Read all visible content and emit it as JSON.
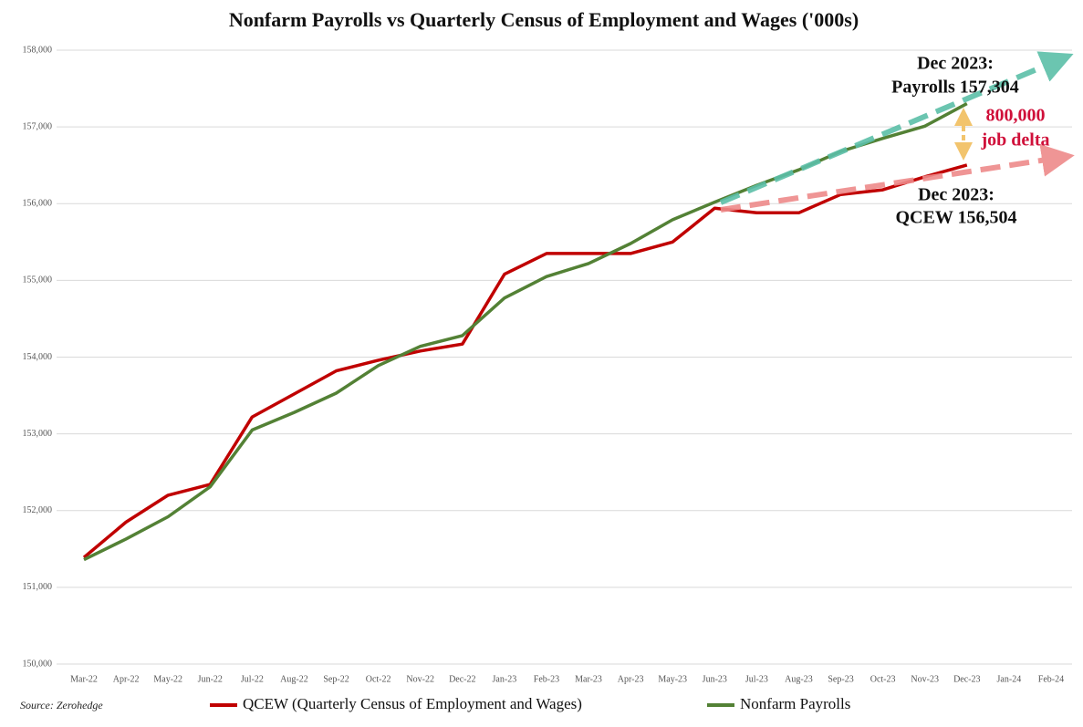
{
  "chart_data": {
    "type": "line",
    "title": "Nonfarm Payrolls vs Quarterly Census of Employment and Wages ('000s)",
    "categories": [
      "Mar-22",
      "Apr-22",
      "May-22",
      "Jun-22",
      "Jul-22",
      "Aug-22",
      "Sep-22",
      "Oct-22",
      "Nov-22",
      "Dec-22",
      "Jan-23",
      "Feb-23",
      "Mar-23",
      "Apr-23",
      "May-23",
      "Jun-23",
      "Jul-23",
      "Aug-23",
      "Sep-23",
      "Oct-23",
      "Nov-23",
      "Dec-23",
      "Jan-24",
      "Feb-24"
    ],
    "series": [
      {
        "name": "QCEW (Quarterly Census of Employment and Wages)",
        "color": "#c00000",
        "values": [
          151390,
          151850,
          152200,
          152340,
          153220,
          153520,
          153820,
          153960,
          154080,
          154170,
          155080,
          155350,
          155350,
          155350,
          155500,
          155940,
          155880,
          155880,
          156120,
          156180,
          156350,
          156504,
          null,
          null
        ]
      },
      {
        "name": "Nonfarm Payrolls",
        "color": "#538135",
        "values": [
          151360,
          151630,
          151920,
          152310,
          153050,
          153280,
          153530,
          153890,
          154140,
          154280,
          154770,
          155050,
          155220,
          155480,
          155790,
          156020,
          156240,
          156440,
          156680,
          156850,
          157010,
          157304,
          null,
          null
        ]
      }
    ],
    "ylim": [
      150000,
      158000
    ],
    "yticks": [
      {
        "value": 150000,
        "label": "150,000"
      },
      {
        "value": 151000,
        "label": "151,000"
      },
      {
        "value": 152000,
        "label": "152,000"
      },
      {
        "value": 153000,
        "label": "153,000"
      },
      {
        "value": 154000,
        "label": "154,000"
      },
      {
        "value": 155000,
        "label": "155,000"
      },
      {
        "value": 156000,
        "label": "156,000"
      },
      {
        "value": 157000,
        "label": "157,000"
      },
      {
        "value": 158000,
        "label": "158,000"
      }
    ],
    "grid": true,
    "legend": "bottom",
    "annotations": [
      "Dec 2023:",
      "Payrolls 157,304",
      "800,000",
      "job delta",
      "Dec 2023:",
      "QCEW 156,504"
    ],
    "source": "Source: Zerohedge"
  }
}
